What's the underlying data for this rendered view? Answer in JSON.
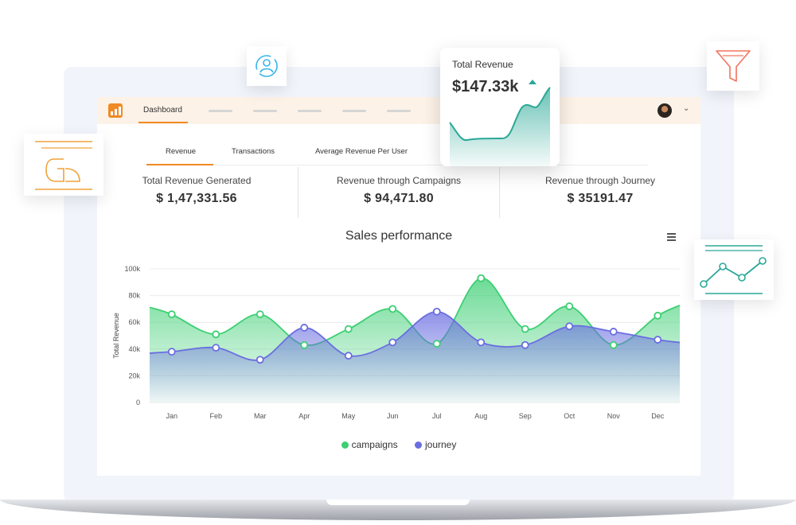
{
  "topbar": {
    "nav_active": "Dashboard"
  },
  "tabs": [
    "Revenue",
    "Transactions",
    "Average Revenue Per User"
  ],
  "stats": [
    {
      "label": "Total Revenue Generated",
      "value": "$ 1,47,331.56"
    },
    {
      "label": "Revenue through Campaigns",
      "value": "$ 94,471.80"
    },
    {
      "label": "Revenue through Journey",
      "value": "$ 35191.47"
    }
  ],
  "revenue_card": {
    "title": "Total Revenue",
    "value": "$147.33k",
    "trend": "up"
  },
  "colors": {
    "accent": "#f08a24",
    "campaigns": "#3ccf73",
    "journey": "#6a6ee0",
    "teal": "#2aa897"
  },
  "chart_data": {
    "type": "area",
    "title": "Sales performance",
    "xlabel": "",
    "ylabel": "Total Revenue",
    "categories": [
      "Jan",
      "Feb",
      "Mar",
      "Apr",
      "May",
      "Jun",
      "Jul",
      "Aug",
      "Sep",
      "Oct",
      "Nov",
      "Dec"
    ],
    "ylim": [
      0,
      100000
    ],
    "yticks": [
      "0",
      "20k",
      "40k",
      "60k",
      "80k",
      "100k"
    ],
    "series": [
      {
        "name": "campaigns",
        "values": [
          66000,
          51000,
          66000,
          43000,
          55000,
          70000,
          44000,
          93000,
          55000,
          72000,
          43000,
          65000
        ]
      },
      {
        "name": "journey",
        "values": [
          38000,
          41000,
          32000,
          56000,
          35000,
          45000,
          68000,
          45000,
          43000,
          57000,
          53000,
          47000
        ]
      }
    ],
    "legend": "bottom",
    "grid": true
  }
}
